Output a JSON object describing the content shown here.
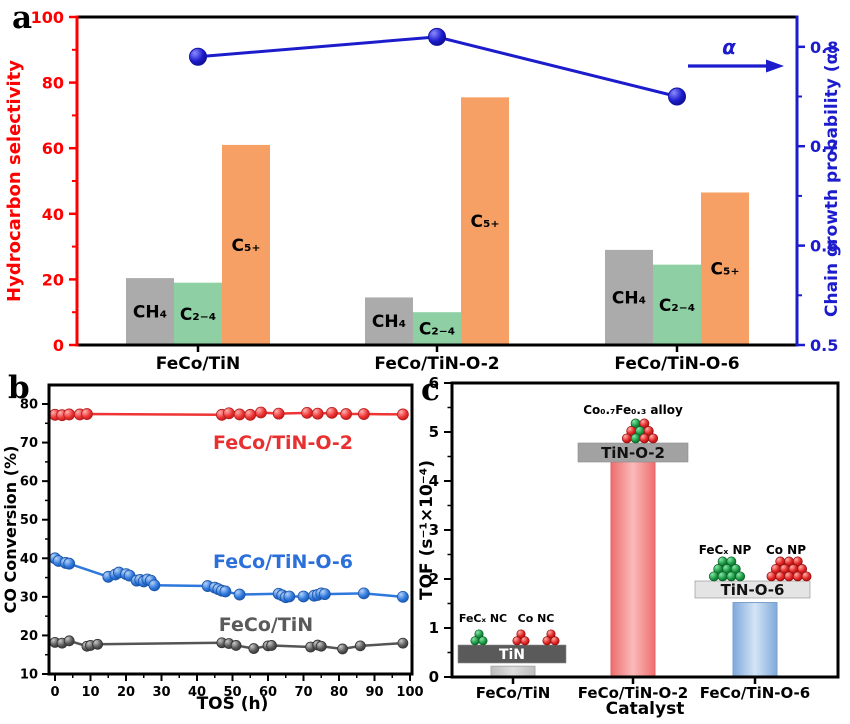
{
  "figure": {
    "panels": [
      {
        "label": "a"
      },
      {
        "label": "b"
      },
      {
        "label": "c"
      }
    ],
    "colors": {
      "red_axis": "#ff0000",
      "blue_axis": "#1c1ccd",
      "bar_gray": "#ababab",
      "bar_green": "#8ecfa4",
      "bar_orange": "#f7a065",
      "series_red": "#ee3434",
      "series_blue": "#2e78dd",
      "series_gray": "#555555",
      "tof_gray": "#c9c9c9",
      "tof_pink": "#ee6e6e",
      "tof_blue": "#7fa9dc",
      "ball_green": "#1d9a44",
      "ball_red": "#e32525"
    }
  },
  "chart_data": [
    {
      "panel": "a",
      "type": "bar",
      "categories": [
        "FeCo/TiN",
        "FeCo/TiN-O-2",
        "FeCo/TiN-O-6"
      ],
      "series": [
        {
          "name": "CH₄",
          "color": "#ababab",
          "values": [
            20.4,
            14.5,
            29.0
          ]
        },
        {
          "name": "C₂₋₄",
          "color": "#8ecfa4",
          "values": [
            19.0,
            10.0,
            24.5
          ]
        },
        {
          "name": "C₅₊",
          "color": "#f7a065",
          "values": [
            61.0,
            75.5,
            46.5
          ]
        }
      ],
      "line_series": {
        "name": "α",
        "color": "#1c1ccd",
        "values": [
          0.79,
          0.81,
          0.75
        ]
      },
      "left_axis": {
        "label": "Hydrocarbon selectivity",
        "color": "#ff0000",
        "min": 0,
        "max": 100,
        "ticks": [
          0,
          20,
          40,
          60,
          80,
          100
        ],
        "minor_step": 10
      },
      "right_axis": {
        "label": "Chain growth probability (α)",
        "color": "#1c1ccd",
        "min": 0.5,
        "max": 0.83,
        "ticks": [
          0.5,
          0.6,
          0.7,
          0.8
        ],
        "minor_step": 0.05
      },
      "annotation": {
        "text": "α"
      },
      "legend_position": "none",
      "grid": false
    },
    {
      "panel": "b",
      "type": "line",
      "xlabel": "TOS (h)",
      "ylabel": "CO Conversion (%)",
      "xlim": [
        -2,
        101
      ],
      "ylim": [
        10,
        85
      ],
      "xticks": [
        0,
        10,
        20,
        30,
        40,
        50,
        60,
        70,
        80,
        90,
        100
      ],
      "yticks": [
        10,
        20,
        30,
        40,
        50,
        60,
        70,
        80
      ],
      "grid": false,
      "series": [
        {
          "name": "FeCo/TiN-O-2",
          "color": "#ee3434",
          "label_color": "#e83030",
          "x": [
            0,
            2,
            4,
            7,
            9,
            47,
            49,
            52,
            55,
            58,
            63,
            71,
            74,
            78,
            82,
            87,
            98
          ],
          "y": [
            77.2,
            77.1,
            77.3,
            77.3,
            77.4,
            77.2,
            77.6,
            77.3,
            77.2,
            77.8,
            77.5,
            77.7,
            77.5,
            77.7,
            77.4,
            77.4,
            77.3
          ]
        },
        {
          "name": "FeCo/TiN-O-6",
          "color": "#2e78dd",
          "label_color": "#2b6fdb",
          "x": [
            0,
            1,
            3,
            4,
            15,
            17,
            18,
            20,
            21,
            23,
            24,
            25,
            26,
            27,
            28,
            43,
            45,
            46,
            47,
            48,
            52,
            63,
            64,
            65,
            66,
            70,
            73,
            74,
            75,
            76,
            87,
            98
          ],
          "y": [
            40,
            39.3,
            38.8,
            38.6,
            35.2,
            35.8,
            36.3,
            35.9,
            35.5,
            34.2,
            34.4,
            34,
            34.5,
            34.2,
            33,
            32.8,
            32.4,
            32,
            31.6,
            31.4,
            30.6,
            30.8,
            30.4,
            29.9,
            30.1,
            30.1,
            30.3,
            30.5,
            30.9,
            30.7,
            30.9,
            30
          ]
        },
        {
          "name": "FeCo/TiN",
          "color": "#555555",
          "label_color": "#5a5a5a",
          "x": [
            0,
            2,
            4,
            9,
            10,
            12,
            47,
            49,
            51,
            56,
            60,
            61,
            72,
            74,
            75,
            81,
            86,
            98
          ],
          "y": [
            18.2,
            18,
            18.6,
            17.2,
            17.4,
            17.7,
            18.1,
            17.9,
            17.4,
            16.6,
            17.3,
            17.4,
            17,
            17.5,
            17.2,
            16.5,
            17.3,
            18
          ]
        }
      ]
    },
    {
      "panel": "c",
      "type": "bar",
      "xlabel": "Catalyst",
      "ylabel": "TOF (s⁻¹×10⁻⁴)",
      "categories": [
        "FeCo/TiN",
        "FeCo/TiN-O-2",
        "FeCo/TiN-O-6"
      ],
      "values": [
        0.22,
        4.4,
        1.52
      ],
      "bar_colors": [
        "#c9c9c9",
        "#ee6e6e",
        "#7fa9dc"
      ],
      "ylim": [
        0,
        6
      ],
      "yticks": [
        0,
        1,
        2,
        3,
        4,
        5,
        6
      ],
      "grid": false,
      "insets": [
        {
          "support": "TiN",
          "support_color": "#5a5a5a",
          "label_color": "#ffffff",
          "tags": [
            "FeCₓ NC",
            "Co NC"
          ],
          "clusters": [
            [
              "g",
              "gg"
            ],
            [
              "r",
              "rr"
            ],
            [
              "r",
              "rr"
            ]
          ]
        },
        {
          "support": "TiN-O-2",
          "support_color": "#a2a2a2",
          "label_color": "#111111",
          "tags": [
            "Co₀.₇Fe₀.₃ alloy"
          ],
          "clusters": [
            [
              "gr",
              "rgr",
              "rgrr"
            ]
          ]
        },
        {
          "support": "TiN-O-6",
          "support_color": "#e4e4e4",
          "label_color": "#111111",
          "tags": [
            "FeCₓ NP",
            "Co NP"
          ],
          "clusters": [
            [
              "gg",
              "ggg",
              "gggg"
            ],
            [
              "rrr",
              "rrrr",
              "rrrrr"
            ]
          ]
        }
      ]
    }
  ]
}
